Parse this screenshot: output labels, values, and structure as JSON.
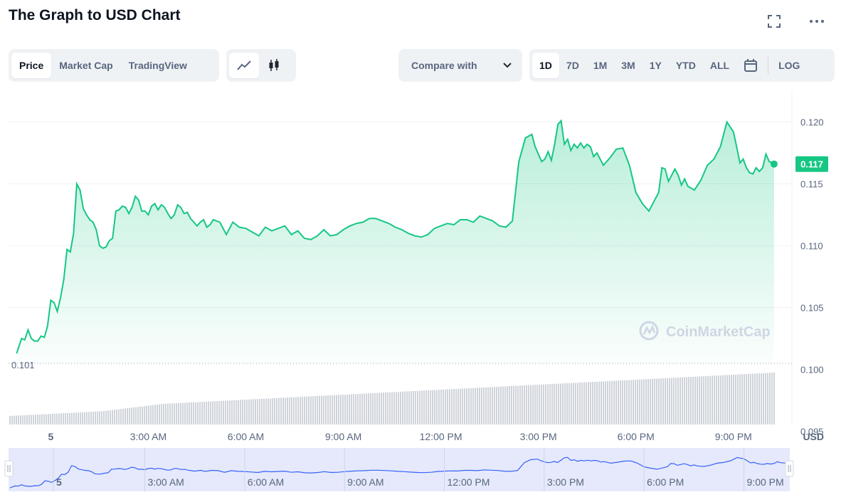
{
  "title": "The Graph to USD Chart",
  "header_icons": [
    "fullscreen-icon",
    "more-icon"
  ],
  "tabs": [
    {
      "label": "Price",
      "active": true
    },
    {
      "label": "Market Cap",
      "active": false
    },
    {
      "label": "TradingView",
      "active": false
    }
  ],
  "chart_type_icons": [
    "line-chart-icon",
    "candlestick-icon"
  ],
  "compare_label": "Compare with",
  "ranges": [
    {
      "label": "1D",
      "active": true
    },
    {
      "label": "7D",
      "active": false
    },
    {
      "label": "1M",
      "active": false
    },
    {
      "label": "3M",
      "active": false
    },
    {
      "label": "1Y",
      "active": false
    },
    {
      "label": "YTD",
      "active": false
    },
    {
      "label": "ALL",
      "active": false
    }
  ],
  "log_label": "LOG",
  "watermark": "CoinMarketCap",
  "currency_label": "USD",
  "colors": {
    "line": "#16c784",
    "area_top": "#c9f1de",
    "volume": "#cfd3da",
    "nav_fill": "#e5e9fb",
    "nav_line": "#3861fb"
  },
  "chart_data": {
    "type": "area",
    "y_ticks": [
      "0.120",
      "0.115",
      "0.110",
      "0.105",
      "0.100",
      "0.095"
    ],
    "ylim": [
      0.0955,
      0.1225
    ],
    "x_tick_labels": [
      "5",
      "3:00 AM",
      "6:00 AM",
      "9:00 AM",
      "12:00 PM",
      "3:00 PM",
      "6:00 PM",
      "9:00 PM"
    ],
    "x_tick_hours": [
      0,
      3,
      6,
      9,
      12,
      15,
      18,
      21
    ],
    "xlim_hours": [
      -1.3,
      22.8
    ],
    "current_price": "0.117",
    "current_value": 0.1166,
    "open_label": "0.101",
    "open_value": 0.1005,
    "navigator_tick_labels": [
      "5",
      "3:00 AM",
      "6:00 AM",
      "9:00 AM",
      "12:00 PM",
      "3:00 PM",
      "6:00 PM",
      "9:00 PM"
    ],
    "series": [
      {
        "x_hours": [
          -1.05,
          -0.9,
          -0.8,
          -0.7,
          -0.6,
          -0.5,
          -0.4,
          -0.3,
          -0.2,
          -0.1,
          0.0,
          0.1,
          0.2,
          0.3,
          0.4,
          0.5,
          0.6,
          0.7,
          0.8,
          0.9,
          1.0,
          1.1,
          1.2,
          1.3,
          1.4,
          1.5,
          1.6,
          1.7,
          1.8,
          1.9,
          2.0,
          2.1,
          2.2,
          2.3,
          2.4,
          2.5,
          2.6,
          2.7,
          2.8,
          2.9,
          3.0,
          3.1,
          3.2,
          3.3,
          3.4,
          3.5,
          3.6,
          3.7,
          3.8,
          3.9,
          4.0,
          4.1,
          4.2,
          4.3,
          4.4,
          4.5,
          4.6,
          4.7,
          4.8,
          4.9,
          5.0,
          5.2,
          5.4,
          5.6,
          5.8,
          6.0,
          6.2,
          6.4,
          6.6,
          6.8,
          7.0,
          7.2,
          7.4,
          7.6,
          7.8,
          8.0,
          8.2,
          8.4,
          8.6,
          8.8,
          9.0,
          9.2,
          9.4,
          9.6,
          9.8,
          10.0,
          10.2,
          10.4,
          10.6,
          10.8,
          11.0,
          11.2,
          11.4,
          11.6,
          11.8,
          12.0,
          12.2,
          12.4,
          12.6,
          12.8,
          13.0,
          13.2,
          13.4,
          13.6,
          13.8,
          14.0,
          14.2,
          14.4,
          14.6,
          14.8,
          14.9,
          15.0,
          15.1,
          15.2,
          15.3,
          15.4,
          15.5,
          15.6,
          15.7,
          15.8,
          15.9,
          16.0,
          16.1,
          16.2,
          16.3,
          16.4,
          16.5,
          16.6,
          16.7,
          16.8,
          16.9,
          17.0,
          17.2,
          17.4,
          17.6,
          17.8,
          18.0,
          18.2,
          18.4,
          18.6,
          18.7,
          18.8,
          18.9,
          19.0,
          19.1,
          19.2,
          19.3,
          19.4,
          19.5,
          19.6,
          19.8,
          20.0,
          20.2,
          20.4,
          20.6,
          20.8,
          21.0,
          21.1,
          21.2,
          21.3,
          21.4,
          21.5,
          21.6,
          21.7,
          21.8,
          21.9,
          22.0,
          22.1,
          22.25
        ],
        "values": [
          0.1013,
          0.1025,
          0.1024,
          0.1032,
          0.1025,
          0.1023,
          0.1023,
          0.1027,
          0.1026,
          0.1035,
          0.1056,
          0.1054,
          0.1047,
          0.1058,
          0.1073,
          0.1097,
          0.1095,
          0.111,
          0.115,
          0.1145,
          0.113,
          0.1125,
          0.1121,
          0.1119,
          0.1113,
          0.11,
          0.1098,
          0.1099,
          0.1104,
          0.1106,
          0.1128,
          0.1129,
          0.1132,
          0.1131,
          0.1126,
          0.1131,
          0.114,
          0.1137,
          0.1128,
          0.1128,
          0.1125,
          0.1132,
          0.1134,
          0.1129,
          0.1133,
          0.1131,
          0.1126,
          0.1122,
          0.1125,
          0.1133,
          0.1131,
          0.1126,
          0.1127,
          0.1122,
          0.1119,
          0.1116,
          0.1119,
          0.1121,
          0.1115,
          0.1117,
          0.1121,
          0.1119,
          0.1109,
          0.1119,
          0.1115,
          0.1114,
          0.1111,
          0.1108,
          0.1115,
          0.1112,
          0.1114,
          0.1116,
          0.1109,
          0.1112,
          0.1106,
          0.1105,
          0.1108,
          0.1113,
          0.1108,
          0.1109,
          0.1113,
          0.1116,
          0.1118,
          0.1119,
          0.1122,
          0.1122,
          0.112,
          0.1118,
          0.1115,
          0.1113,
          0.111,
          0.1108,
          0.1107,
          0.1109,
          0.1114,
          0.1116,
          0.1118,
          0.1117,
          0.1121,
          0.1121,
          0.1119,
          0.1124,
          0.1122,
          0.112,
          0.1116,
          0.1115,
          0.112,
          0.1168,
          0.1187,
          0.119,
          0.118,
          0.1174,
          0.1168,
          0.117,
          0.1176,
          0.1169,
          0.1182,
          0.1198,
          0.1201,
          0.1182,
          0.1186,
          0.1177,
          0.1182,
          0.1179,
          0.1183,
          0.1179,
          0.1182,
          0.118,
          0.1172,
          0.1175,
          0.117,
          0.1165,
          0.1171,
          0.1178,
          0.1179,
          0.1165,
          0.1143,
          0.1134,
          0.1128,
          0.1138,
          0.1143,
          0.1163,
          0.1162,
          0.1152,
          0.1157,
          0.1162,
          0.1157,
          0.1149,
          0.1154,
          0.1148,
          0.1145,
          0.1153,
          0.1165,
          0.117,
          0.118,
          0.12,
          0.1192,
          0.118,
          0.1167,
          0.117,
          0.1163,
          0.1159,
          0.1158,
          0.1163,
          0.116,
          0.1163,
          0.1174,
          0.1168,
          0.1166
        ]
      }
    ]
  }
}
